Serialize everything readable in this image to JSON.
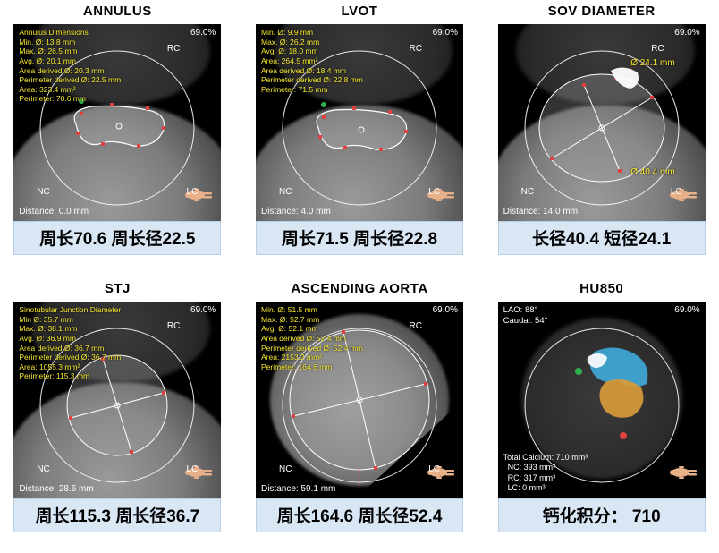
{
  "pct_label": "69.0%",
  "colors": {
    "meas_text": "#f7ea2e",
    "caption_bg": "#d9e7f5",
    "caption_border": "#b9cfe5",
    "ring": "#ffffff",
    "tick": "#e04040",
    "green": "#2fb24c",
    "calc_blue": "#3fa8d8",
    "calc_orange": "#d89a3a"
  },
  "orient_labels": {
    "rc": "RC",
    "nc": "NC",
    "lc": "LC"
  },
  "panels": [
    {
      "title": "ANNULUS",
      "meas": "Annulus Dimensions\nMin. Ø: 13.8 mm\nMax. Ø: 26.5 mm\nAvg. Ø: 20.1 mm\nArea derived Ø: 20.3 mm\nPerimeter derived Ø: 22.5 mm\nArea: 323.4 mm²\nPerimeter: 70.6 mm",
      "distance": "Distance: 0.0 mm",
      "caption": "周长70.6 周长径22.5",
      "shape": "kidney"
    },
    {
      "title": "LVOT",
      "meas": "Min. Ø: 9.9 mm\nMax. Ø: 26.2 mm\nAvg. Ø: 18.0 mm\nArea: 264.5 mm²\nArea derived Ø: 18.4 mm\nPerimeter derived Ø: 22.8 mm\nPerimeter: 71.5 mm",
      "distance": "Distance: 4.0 mm",
      "caption": "周长71.5 周长径22.8",
      "shape": "kidney2"
    },
    {
      "title": "SOV DIAMETER",
      "meas": "",
      "distance": "Distance: 14.0 mm",
      "caption": "长径40.4 短径24.1",
      "shape": "sov",
      "sov_max": "Ø 40.4 mm",
      "sov_min": "Ø 24.1 mm"
    },
    {
      "title": "STJ",
      "meas": "Sinotubular Junction Diameter\nMin Ø: 35.7 mm\nMax. Ø: 38.1 mm\nAvg. Ø: 36.9 mm\nArea derived Ø: 36.7 mm\nPerimeter derived Ø: 36.7 mm\nArea: 1055.3 mm²\nPerimeter: 115.3 mm",
      "distance": "Distance: 28.6 mm",
      "caption": "周长115.3 周长径36.7",
      "shape": "circle_sm"
    },
    {
      "title": "ASCENDING AORTA",
      "meas": "Min. Ø: 51.5 mm\nMax. Ø: 52.7 mm\nAvg. Ø: 52.1 mm\nArea derived Ø: 52.4 mm\nPerimeter derived Ø: 52.4 mm\nArea: 2153.2 mm²\nPerimeter: 164.6 mm",
      "distance": "Distance: 59.1 mm",
      "caption": "周长164.6 周长径52.4",
      "shape": "circle_lg"
    },
    {
      "title": "HU850",
      "meas": "",
      "distance": "",
      "caption": "钙化积分： 710",
      "shape": "calcium",
      "angle": "LAO: 88°\nCaudal: 54°",
      "calcium_text": "Total Calcium: 710 mm³\n  NC: 393 mm³\n  RC: 317 mm³\n  LC: 0 mm³"
    }
  ]
}
